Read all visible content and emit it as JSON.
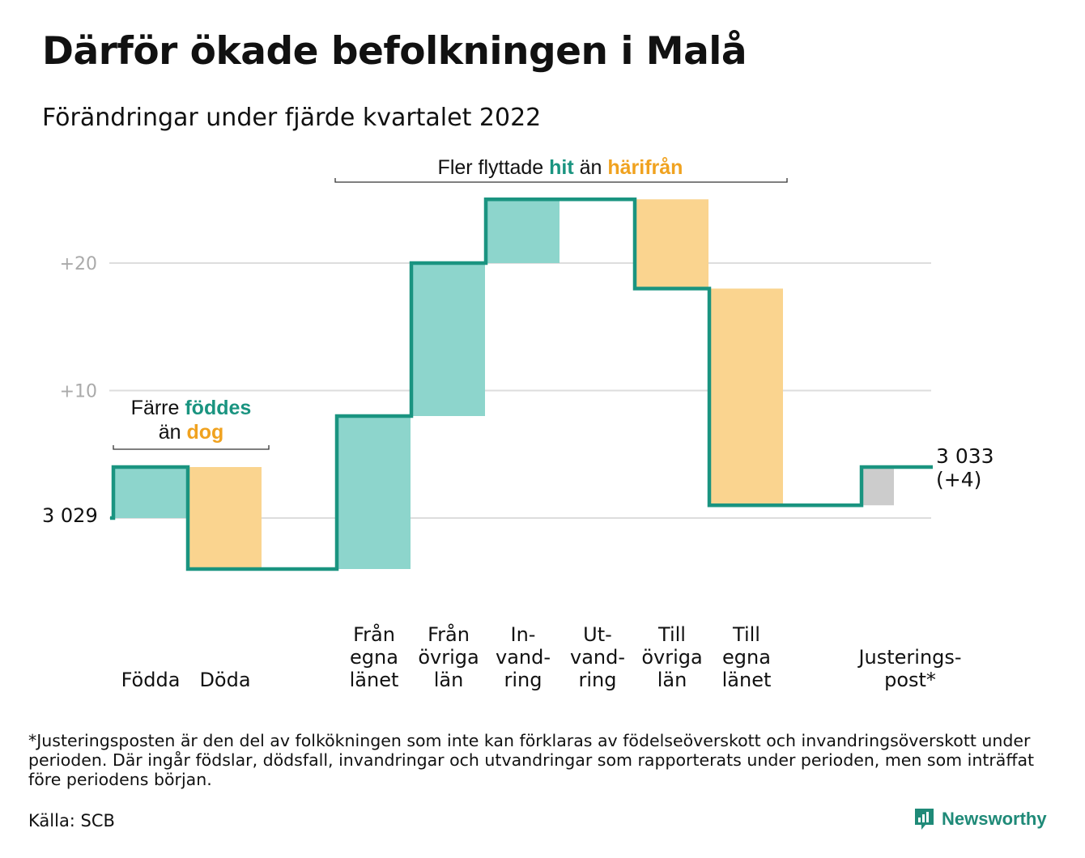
{
  "title": "Därför ökade befolkningen i Malå",
  "subtitle": "Förändringar under fjärde kvartalet 2022",
  "annotations": {
    "births_a": "Färre ",
    "births_b": "föddes",
    "births_c": "än ",
    "births_d": "dog",
    "moves_a": "Fler flyttade ",
    "moves_b": "hit",
    "moves_c": " än ",
    "moves_d": "härifrån"
  },
  "start_label": "3 029",
  "end_label": [
    "3 033",
    "(+4)"
  ],
  "footnote": "*Justeringsposten är den del av folkökningen som inte kan förklaras av födelseöverskott och invandringsöverskott under perioden. Där ingår födslar, dödsfall, invandringar och utvandringar som rapporterats under perioden, men som inträffat före periodens början.",
  "source": "Källa: SCB",
  "brand": "Newsworthy",
  "colors": {
    "increase": "#8dd5cc",
    "decrease": "#fad48f",
    "adjustment": "#cccccc",
    "line": "#1a9480",
    "teal_text": "#1a9480",
    "orange_text": "#f0a21f",
    "grid": "#dddddd"
  },
  "chart_data": {
    "type": "waterfall",
    "baseline": 3029,
    "ylim": [
      -6,
      25
    ],
    "yticks": [
      {
        "value": 10,
        "label": "+10"
      },
      {
        "value": 20,
        "label": "+20"
      }
    ],
    "grid": true,
    "steps": [
      {
        "label": [
          "Födda"
        ],
        "value": 4,
        "kind": "increase"
      },
      {
        "label": [
          "Döda"
        ],
        "value": -8,
        "kind": "decrease"
      },
      {
        "label": [],
        "value": 0,
        "kind": "gap"
      },
      {
        "label": [
          "Från",
          "egna",
          "länet"
        ],
        "value": 12,
        "kind": "increase"
      },
      {
        "label": [
          "Från",
          "övriga",
          "län"
        ],
        "value": 12,
        "kind": "increase"
      },
      {
        "label": [
          "In-",
          "vand-",
          "ring"
        ],
        "value": 5,
        "kind": "increase"
      },
      {
        "label": [
          "Ut-",
          "vand-",
          "ring"
        ],
        "value": 0,
        "kind": "decrease"
      },
      {
        "label": [
          "Till",
          "övriga",
          "län"
        ],
        "value": -7,
        "kind": "decrease"
      },
      {
        "label": [
          "Till",
          "egna",
          "länet"
        ],
        "value": -17,
        "kind": "decrease"
      },
      {
        "label": [],
        "value": 0,
        "kind": "gap"
      },
      {
        "label": [
          "Justerings-",
          "post*"
        ],
        "value": 3,
        "kind": "adjustment"
      }
    ],
    "end_value": 3033,
    "net_change": 4
  }
}
